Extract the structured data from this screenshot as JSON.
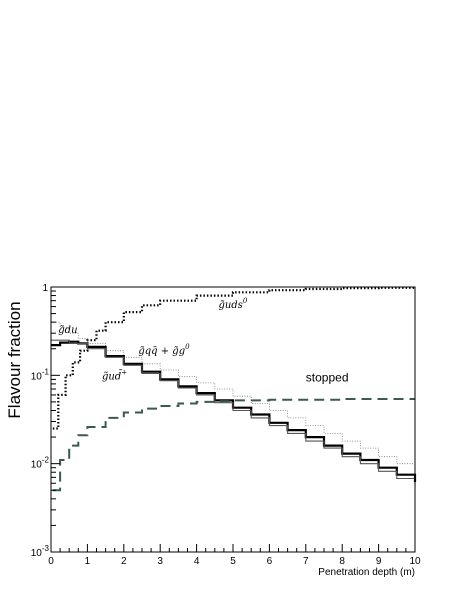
{
  "chart_data": {
    "type": "line",
    "xlabel": "Penetration depth (m)",
    "ylabel": "Flavour fraction",
    "xlim": [
      0,
      10
    ],
    "ylim": [
      0.001,
      1
    ],
    "yscale": "log",
    "grid": false,
    "x_ticks": [
      0,
      1,
      2,
      3,
      4,
      5,
      6,
      7,
      8,
      9,
      10
    ],
    "y_ticks": [
      {
        "value": 0.001,
        "label": "10",
        "exp": "-3"
      },
      {
        "value": 0.01,
        "label": "10",
        "exp": "-2"
      },
      {
        "value": 0.1,
        "label": "10",
        "exp": "-1"
      },
      {
        "value": 1,
        "label": "1",
        "exp": ""
      }
    ],
    "series": [
      {
        "style": "dotted-steps",
        "color": "#000000",
        "x": [
          0.05,
          0.2,
          0.4,
          0.6,
          0.8,
          1.0,
          1.25,
          1.5,
          2,
          2.5,
          3,
          4,
          5,
          6,
          7,
          8,
          9,
          10
        ],
        "y": [
          0.025,
          0.06,
          0.1,
          0.14,
          0.19,
          0.25,
          0.32,
          0.4,
          0.52,
          0.62,
          0.7,
          0.8,
          0.87,
          0.92,
          0.95,
          0.97,
          0.98,
          0.99
        ]
      },
      {
        "style": "thin-steps",
        "color": "#777777",
        "x": [
          0,
          0.25,
          0.5,
          0.75,
          1,
          1.5,
          2,
          2.5,
          3,
          3.5,
          4,
          4.5,
          5,
          5.5,
          6,
          6.5,
          7,
          7.5,
          8,
          8.5,
          9,
          9.5,
          10
        ],
        "y": [
          0.4,
          0.35,
          0.3,
          0.26,
          0.23,
          0.19,
          0.16,
          0.135,
          0.115,
          0.097,
          0.082,
          0.07,
          0.058,
          0.048,
          0.04,
          0.033,
          0.027,
          0.022,
          0.018,
          0.015,
          0.012,
          0.01,
          0.0085
        ]
      },
      {
        "style": "thick-steps",
        "color": "#000000",
        "x": [
          0,
          0.25,
          0.5,
          0.75,
          1,
          1.5,
          2,
          2.5,
          3,
          3.5,
          4,
          4.5,
          5,
          5.5,
          6,
          6.5,
          7,
          7.5,
          8,
          8.5,
          9,
          9.5,
          10
        ],
        "y": [
          0.22,
          0.235,
          0.24,
          0.23,
          0.21,
          0.165,
          0.135,
          0.11,
          0.09,
          0.075,
          0.063,
          0.052,
          0.043,
          0.036,
          0.029,
          0.024,
          0.02,
          0.016,
          0.013,
          0.011,
          0.009,
          0.0075,
          0.0062
        ]
      },
      {
        "style": "gray-steps",
        "color": "#555555",
        "x": [
          0,
          0.5,
          1,
          1.5,
          2,
          2.5,
          3,
          3.5,
          4,
          4.5,
          5,
          5.5,
          6,
          6.5,
          7,
          7.5,
          8,
          8.5,
          9,
          9.5,
          10
        ],
        "y": [
          0.25,
          0.23,
          0.2,
          0.16,
          0.13,
          0.105,
          0.087,
          0.072,
          0.06,
          0.049,
          0.04,
          0.033,
          0.027,
          0.022,
          0.018,
          0.015,
          0.012,
          0.01,
          0.0082,
          0.0068,
          0.0055
        ]
      },
      {
        "style": "dashed",
        "color": "#3a5a50",
        "x": [
          0.05,
          0.25,
          0.5,
          0.75,
          1,
          1.5,
          2,
          2.5,
          3,
          3.5,
          4,
          4.5,
          5,
          6,
          7,
          8,
          9,
          10
        ],
        "y": [
          0.005,
          0.011,
          0.016,
          0.021,
          0.026,
          0.033,
          0.038,
          0.042,
          0.045,
          0.048,
          0.05,
          0.051,
          0.052,
          0.053,
          0.053,
          0.054,
          0.054,
          0.054
        ]
      }
    ],
    "annotations": [
      {
        "id": "uds",
        "text": "g̃uds",
        "sup": "0",
        "x": 4.6,
        "y": 0.58
      },
      {
        "id": "du",
        "text": "g̃du",
        "sup": "",
        "x": 0.2,
        "y": 0.3
      },
      {
        "id": "gq",
        "text": "g̃qq̄ + g̃g",
        "sup": "0",
        "x": 2.4,
        "y": 0.175
      },
      {
        "id": "ud",
        "text": "g̃ud̄",
        "sup": "+",
        "x": 1.4,
        "y": 0.09
      },
      {
        "id": "stopped",
        "text": "stopped",
        "sup": "",
        "x": 7.0,
        "y": 0.085
      }
    ]
  }
}
